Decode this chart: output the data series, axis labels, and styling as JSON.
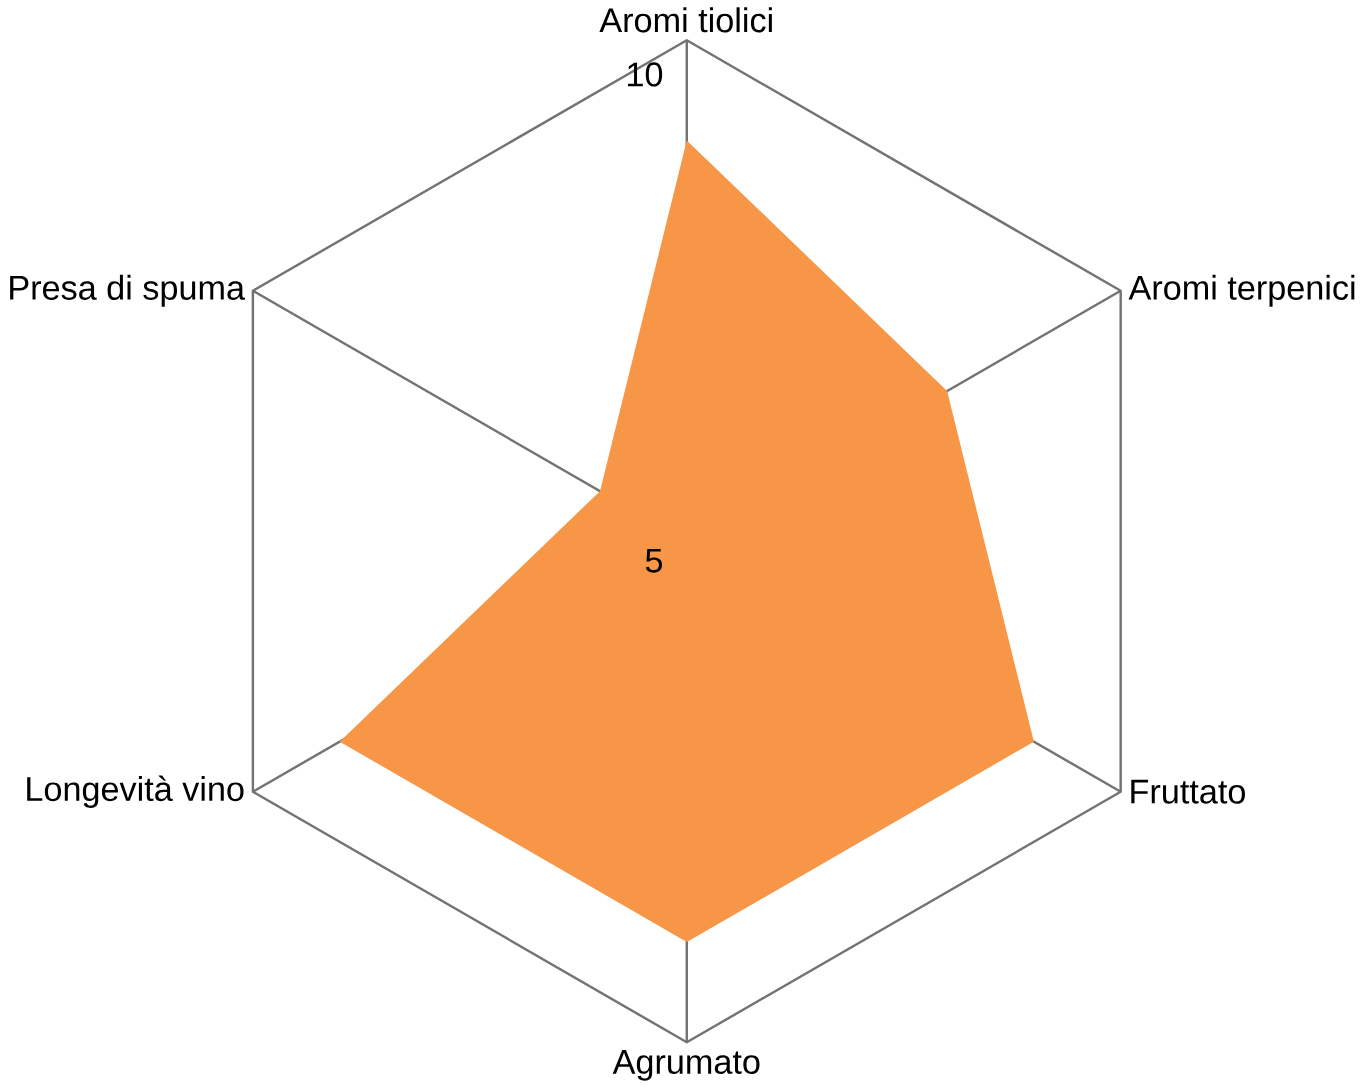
{
  "chart_data": {
    "type": "radar",
    "categories": [
      "Aromi tiolici",
      "Aromi terpenici",
      "Fruttato",
      "Agrumato",
      "Longevità vino",
      "Presa di spuma"
    ],
    "series": [
      {
        "color": "#f79646",
        "values": [
          9,
          8,
          9,
          9,
          9,
          6
        ]
      }
    ],
    "ylim": [
      5,
      10
    ],
    "yticks": [
      5,
      10
    ],
    "grid": true
  }
}
